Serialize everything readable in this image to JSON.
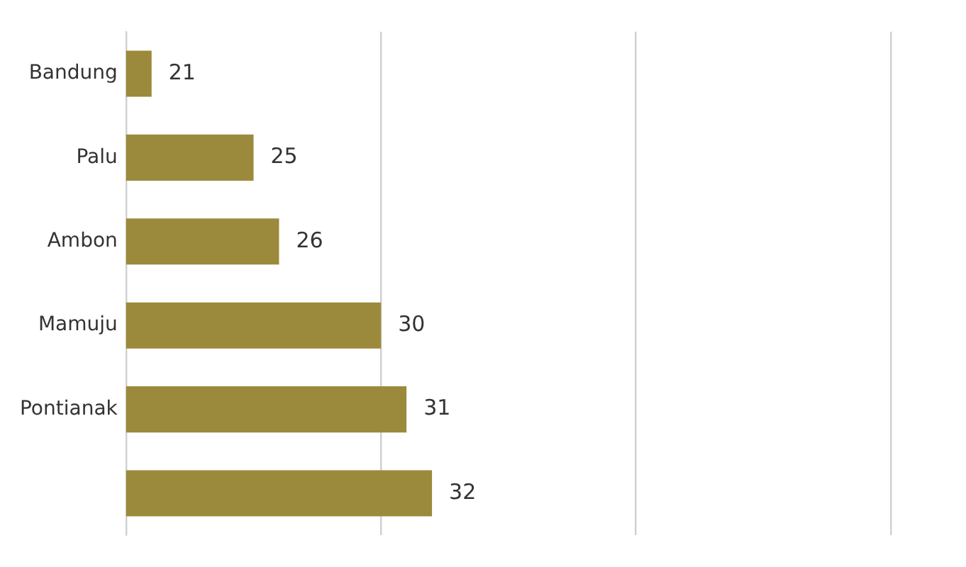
{
  "chart_data": {
    "type": "bar",
    "orientation": "horizontal",
    "categories": [
      "Bandung",
      "Palu",
      "Ambon",
      "Mamuju",
      "Pontianak",
      null
    ],
    "values": [
      21,
      25,
      26,
      30,
      31,
      32
    ],
    "color": "#9b8a3b",
    "xlim": [
      20,
      50
    ],
    "xticks": [
      {
        "value": 20,
        "label": null
      },
      {
        "value": 30,
        "label": null
      },
      {
        "value": 40,
        "label": null
      },
      {
        "value": 50,
        "label": null
      }
    ],
    "grid": "x",
    "tick_labels": "y",
    "data_labels": true,
    "legend": false
  }
}
